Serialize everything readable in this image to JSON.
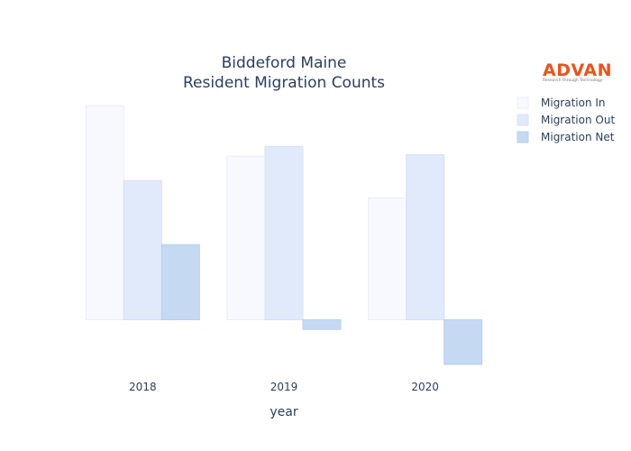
{
  "chart_data": {
    "type": "bar",
    "title": [
      "Biddeford Maine",
      "Resident Migration Counts"
    ],
    "xlabel": "year",
    "ylabel": "",
    "categories": [
      "2018",
      "2019",
      "2020"
    ],
    "series": [
      {
        "name": "Migration In",
        "values": [
          2880,
          2200,
          1640
        ],
        "color": "#f7f9fe",
        "stroke": "#e9eefb"
      },
      {
        "name": "Migration Out",
        "values": [
          1870,
          2330,
          2220
        ],
        "color": "#e1eafb",
        "stroke": "#d5e1f8"
      },
      {
        "name": "Migration Net",
        "values": [
          1010,
          -130,
          -600
        ],
        "color": "#c6d9f3",
        "stroke": "#b9cfee"
      }
    ],
    "ylim": [
      -600,
      2880
    ],
    "grid": false,
    "yticks_visible": false,
    "legend_position": "top-right"
  },
  "logo": {
    "text": "ADVAN",
    "tagline": "Research through Technology",
    "color": "#e8541e"
  }
}
